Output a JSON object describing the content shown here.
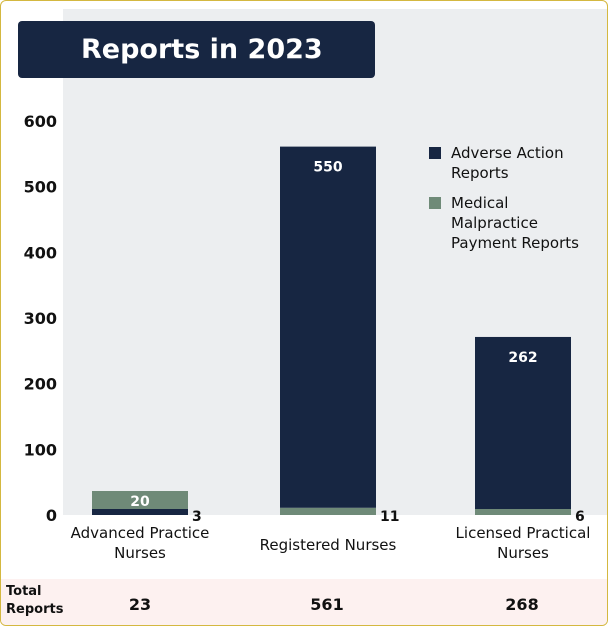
{
  "chart_data": {
    "type": "bar",
    "stacked": true,
    "title": "Reports in 2023",
    "categories": [
      [
        "Advanced Practice",
        "Nurses"
      ],
      [
        "Registered Nurses"
      ],
      [
        "Licensed Practical",
        "Nurses"
      ]
    ],
    "series": [
      {
        "name": "Adverse Action Reports",
        "values": [
          3,
          550,
          262
        ],
        "color": "#172642"
      },
      {
        "name": "Medical Malpractice Payment Reports",
        "values": [
          20,
          11,
          6
        ],
        "color": "#6f8a78"
      }
    ],
    "legend_lines": [
      [
        "Adverse Action",
        "Reports"
      ],
      [
        "Medical",
        "Malpractice",
        "Payment Reports"
      ]
    ],
    "yticks": [
      0,
      100,
      200,
      300,
      400,
      500,
      600
    ],
    "ylim": [
      0,
      600
    ],
    "grid": false,
    "legend_position": "right",
    "plot_background": "#eceef0"
  },
  "totals": {
    "label": [
      "Total",
      "Reports"
    ],
    "values": [
      "23",
      "561",
      "268"
    ]
  }
}
